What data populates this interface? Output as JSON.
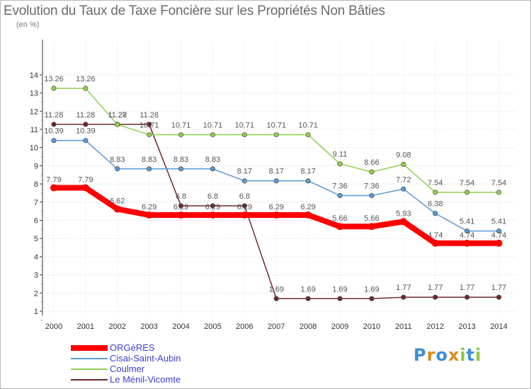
{
  "title": "Evolution du Taux de Taxe Foncière sur les Propriétés Non Bâties",
  "unit_label": "(en %)",
  "logo_text": "Proxiti",
  "chart_data": {
    "type": "line",
    "title": "Evolution du Taux de Taxe Foncière sur les Propriétés Non Bâties",
    "ylabel": "(en %)",
    "xlabel": "",
    "ylim": [
      1,
      14
    ],
    "yticks": [
      1,
      2,
      3,
      4,
      5,
      6,
      7,
      8,
      9,
      10,
      11,
      12,
      13,
      14
    ],
    "grid": true,
    "legend_position": "bottom-left",
    "x": [
      "2000",
      "2001",
      "2002",
      "2003",
      "2004",
      "2005",
      "2006",
      "2007",
      "2008",
      "2009",
      "2010",
      "2011",
      "2012",
      "2013",
      "2014"
    ],
    "series": [
      {
        "name": "ORGèRES",
        "color": "#ff0000",
        "values": [
          7.79,
          7.79,
          6.62,
          6.29,
          6.29,
          6.29,
          6.29,
          6.29,
          6.29,
          5.66,
          5.66,
          5.93,
          4.74,
          4.74,
          4.74
        ],
        "labels": [
          "7.79",
          "7.79",
          "6.62",
          "6.29",
          "6.29",
          "6.29",
          "6.29",
          "6.29",
          "6.29",
          "5.66",
          "5.66",
          "5.93",
          "4.74",
          "4.74",
          "4.74"
        ]
      },
      {
        "name": "Cisai-Saint-Aubin",
        "color": "#5b9bd5",
        "values": [
          10.39,
          10.39,
          8.83,
          8.83,
          8.83,
          8.83,
          8.17,
          8.17,
          8.17,
          7.36,
          7.36,
          7.72,
          6.38,
          5.41,
          5.41
        ],
        "labels": [
          "10.39",
          "10.39",
          "8.83",
          "8.83",
          "8.83",
          "8.83",
          "8.17",
          "8.17",
          "8.17",
          "7.36",
          "7.36",
          "7.72",
          "6.38",
          "5.41",
          "5.41"
        ]
      },
      {
        "name": "Coulmer",
        "color": "#8fd14f",
        "values": [
          13.26,
          13.26,
          11.27,
          10.71,
          10.71,
          10.71,
          10.71,
          10.71,
          10.71,
          9.11,
          8.66,
          9.08,
          7.54,
          7.54,
          7.54
        ],
        "labels": [
          "13.26",
          "13.26",
          "11.27",
          "10.71",
          "10.71",
          "10.71",
          "10.71",
          "10.71",
          "10.71",
          "9.11",
          "8.66",
          "9.08",
          "7.54",
          "7.54",
          "7.54"
        ]
      },
      {
        "name": "Le Ménil-Vicomte",
        "color": "#6b2a2a",
        "values": [
          11.28,
          11.28,
          11.28,
          11.28,
          6.8,
          6.8,
          6.8,
          1.69,
          1.69,
          1.69,
          1.69,
          1.77,
          1.77,
          1.77,
          1.77
        ],
        "labels": [
          "11.28",
          "11.28",
          "11.28",
          "11.28",
          "6.8",
          "6.8",
          "6.8",
          "1.69",
          "1.69",
          "1.69",
          "1.69",
          "1.77",
          "1.77",
          "1.77",
          "1.77"
        ]
      }
    ]
  }
}
